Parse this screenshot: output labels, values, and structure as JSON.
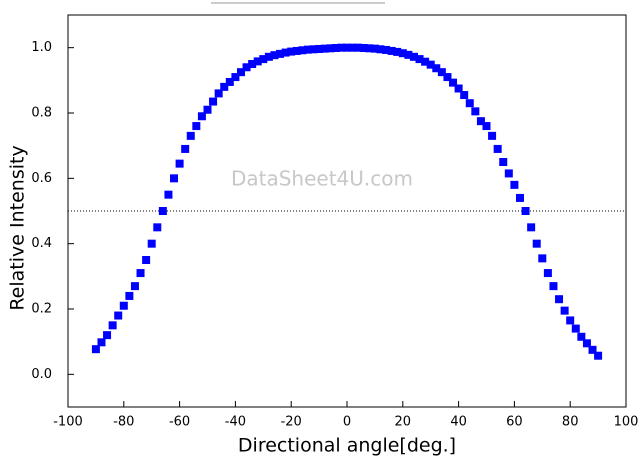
{
  "chart_data": {
    "type": "scatter",
    "x_label": "Directional angle[deg.]",
    "y_label": "Relative Intensity",
    "annotation": "DataSheet4U.com",
    "reference_line": 0.5,
    "xlim": [
      -100,
      100
    ],
    "ylim": [
      -0.1,
      1.1
    ],
    "xticks": [
      -100,
      -80,
      -60,
      -40,
      -20,
      0,
      20,
      40,
      60,
      80,
      100
    ],
    "yticks": [
      {
        "value": 0,
        "label": "0.0"
      },
      0.2,
      0.4,
      0.6,
      0.8,
      {
        "value": 1,
        "label": "1.0"
      }
    ],
    "color": "#0000ff",
    "x": [
      -90,
      -88,
      -86,
      -84,
      -82,
      -80,
      -78,
      -76,
      -74,
      -72,
      -70,
      -68,
      -66,
      -64,
      -62,
      -60,
      -58,
      -56,
      -54,
      -52,
      -50,
      -48,
      -46,
      -44,
      -42,
      -40,
      -38,
      -36,
      -34,
      -32,
      -30,
      -28,
      -26,
      -24,
      -22,
      -20,
      -18,
      -16,
      -14,
      -12,
      -10,
      -8,
      -6,
      -4,
      -2,
      0,
      2,
      4,
      6,
      8,
      10,
      12,
      14,
      16,
      18,
      20,
      22,
      24,
      26,
      28,
      30,
      32,
      34,
      36,
      38,
      40,
      42,
      44,
      46,
      48,
      50,
      52,
      54,
      56,
      58,
      60,
      62,
      64,
      66,
      68,
      70,
      72,
      74,
      76,
      78,
      80,
      82,
      84,
      86,
      88,
      90
    ],
    "values": [
      0.077,
      0.098,
      0.12,
      0.15,
      0.18,
      0.21,
      0.24,
      0.27,
      0.31,
      0.35,
      0.4,
      0.45,
      0.5,
      0.55,
      0.6,
      0.645,
      0.69,
      0.73,
      0.76,
      0.79,
      0.81,
      0.835,
      0.86,
      0.88,
      0.895,
      0.91,
      0.925,
      0.94,
      0.95,
      0.958,
      0.965,
      0.972,
      0.977,
      0.981,
      0.985,
      0.988,
      0.99,
      0.992,
      0.994,
      0.995,
      0.996,
      0.997,
      0.998,
      0.999,
      1.0,
      1.0,
      1.0,
      1.0,
      0.999,
      0.998,
      0.997,
      0.995,
      0.993,
      0.99,
      0.987,
      0.983,
      0.978,
      0.972,
      0.965,
      0.957,
      0.948,
      0.937,
      0.925,
      0.91,
      0.893,
      0.875,
      0.855,
      0.83,
      0.805,
      0.775,
      0.76,
      0.73,
      0.69,
      0.65,
      0.615,
      0.58,
      0.54,
      0.5,
      0.45,
      0.4,
      0.355,
      0.31,
      0.27,
      0.23,
      0.195,
      0.165,
      0.14,
      0.115,
      0.095,
      0.075,
      0.057
    ]
  }
}
